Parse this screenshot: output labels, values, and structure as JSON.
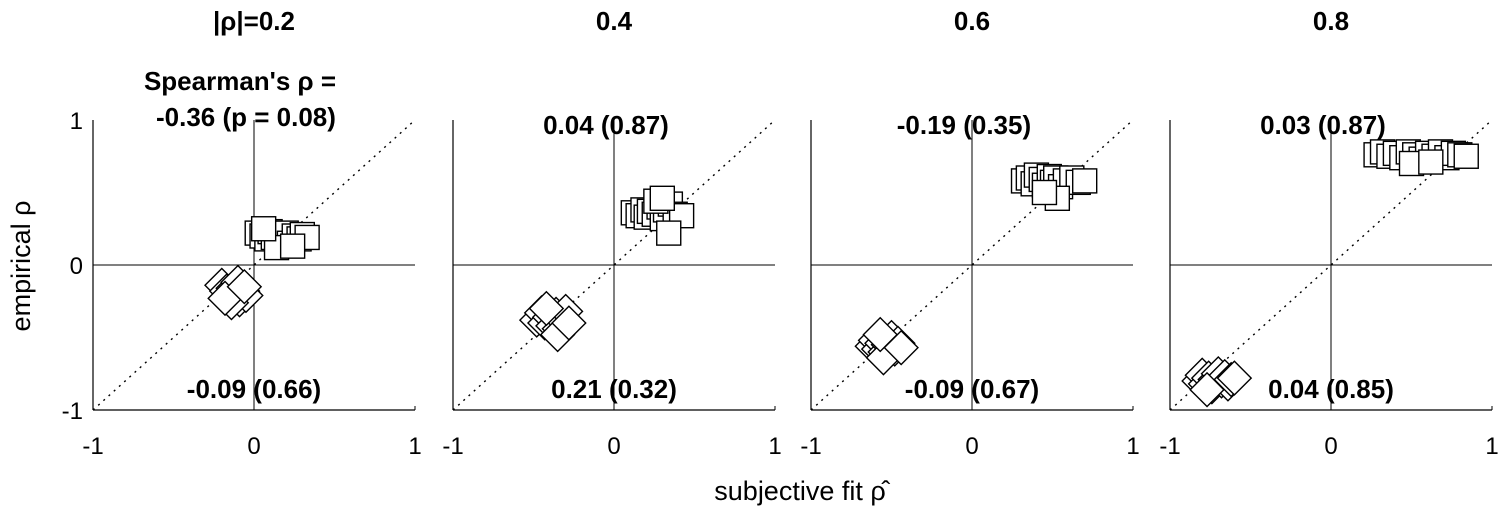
{
  "figure": {
    "xlabel": "subjective fit ρ̂",
    "ylabel": "empirical ρ",
    "spearman_header": "Spearman's ρ =",
    "x_ticks": [
      "-1",
      "0",
      "1"
    ],
    "y_ticks": [
      "1",
      "0",
      "-1"
    ]
  },
  "chart_data": [
    {
      "type": "scatter",
      "title": "|ρ|=0.2",
      "xlim": [
        -1,
        1
      ],
      "ylim": [
        -1,
        1
      ],
      "reference_line": "identity (dotted)",
      "annotations": {
        "top": "-0.36 (p = 0.08)",
        "bottom": "-0.09 (0.66)"
      },
      "series": [
        {
          "marker": "square",
          "points": [
            [
              0.02,
              0.22
            ],
            [
              0.05,
              0.2
            ],
            [
              0.08,
              0.18
            ],
            [
              0.1,
              0.23
            ],
            [
              0.12,
              0.19
            ],
            [
              0.15,
              0.21
            ],
            [
              0.18,
              0.17
            ],
            [
              0.2,
              0.22
            ],
            [
              0.22,
              0.15
            ],
            [
              0.25,
              0.2
            ],
            [
              0.28,
              0.18
            ],
            [
              0.3,
              0.21
            ],
            [
              0.33,
              0.19
            ],
            [
              0.14,
              0.12
            ],
            [
              0.24,
              0.13
            ],
            [
              0.06,
              0.25
            ]
          ]
        },
        {
          "marker": "diamond",
          "points": [
            [
              -0.2,
              -0.14
            ],
            [
              -0.17,
              -0.18
            ],
            [
              -0.15,
              -0.22
            ],
            [
              -0.13,
              -0.16
            ],
            [
              -0.11,
              -0.2
            ],
            [
              -0.09,
              -0.24
            ],
            [
              -0.07,
              -0.18
            ],
            [
              -0.05,
              -0.21
            ],
            [
              -0.14,
              -0.26
            ],
            [
              -0.1,
              -0.12
            ],
            [
              -0.18,
              -0.23
            ],
            [
              -0.06,
              -0.15
            ]
          ]
        }
      ]
    },
    {
      "type": "scatter",
      "title": "0.4",
      "xlim": [
        -1,
        1
      ],
      "ylim": [
        -1,
        1
      ],
      "reference_line": "identity (dotted)",
      "annotations": {
        "top": "0.04 (0.87)",
        "bottom": "0.21 (0.32)"
      },
      "series": [
        {
          "marker": "square",
          "points": [
            [
              0.12,
              0.36
            ],
            [
              0.15,
              0.34
            ],
            [
              0.18,
              0.38
            ],
            [
              0.2,
              0.33
            ],
            [
              0.22,
              0.37
            ],
            [
              0.25,
              0.35
            ],
            [
              0.28,
              0.4
            ],
            [
              0.3,
              0.32
            ],
            [
              0.32,
              0.38
            ],
            [
              0.35,
              0.42
            ],
            [
              0.38,
              0.35
            ],
            [
              0.42,
              0.34
            ],
            [
              0.26,
              0.44
            ],
            [
              0.34,
              0.22
            ],
            [
              0.3,
              0.46
            ]
          ]
        },
        {
          "marker": "diamond",
          "points": [
            [
              -0.48,
              -0.38
            ],
            [
              -0.45,
              -0.33
            ],
            [
              -0.43,
              -0.4
            ],
            [
              -0.4,
              -0.36
            ],
            [
              -0.38,
              -0.42
            ],
            [
              -0.36,
              -0.34
            ],
            [
              -0.34,
              -0.44
            ],
            [
              -0.32,
              -0.38
            ],
            [
              -0.3,
              -0.32
            ],
            [
              -0.35,
              -0.48
            ],
            [
              -0.42,
              -0.3
            ],
            [
              -0.28,
              -0.4
            ]
          ]
        }
      ]
    },
    {
      "type": "scatter",
      "title": "0.6",
      "xlim": [
        -1,
        1
      ],
      "ylim": [
        -1,
        1
      ],
      "reference_line": "identity (dotted)",
      "annotations": {
        "top": "-0.19 (0.35)",
        "bottom": "-0.09 (0.67)"
      },
      "series": [
        {
          "marker": "square",
          "points": [
            [
              0.32,
              0.58
            ],
            [
              0.35,
              0.6
            ],
            [
              0.38,
              0.56
            ],
            [
              0.4,
              0.62
            ],
            [
              0.43,
              0.59
            ],
            [
              0.45,
              0.55
            ],
            [
              0.48,
              0.61
            ],
            [
              0.5,
              0.57
            ],
            [
              0.52,
              0.6
            ],
            [
              0.55,
              0.54
            ],
            [
              0.58,
              0.58
            ],
            [
              0.62,
              0.6
            ],
            [
              0.66,
              0.57
            ],
            [
              0.7,
              0.58
            ],
            [
              0.53,
              0.46
            ],
            [
              0.45,
              0.5
            ]
          ]
        },
        {
          "marker": "diamond",
          "points": [
            [
              -0.62,
              -0.56
            ],
            [
              -0.6,
              -0.52
            ],
            [
              -0.58,
              -0.58
            ],
            [
              -0.56,
              -0.54
            ],
            [
              -0.54,
              -0.6
            ],
            [
              -0.52,
              -0.55
            ],
            [
              -0.5,
              -0.5
            ],
            [
              -0.48,
              -0.58
            ],
            [
              -0.46,
              -0.54
            ],
            [
              -0.55,
              -0.64
            ],
            [
              -0.44,
              -0.57
            ],
            [
              -0.57,
              -0.48
            ]
          ]
        }
      ]
    },
    {
      "type": "scatter",
      "title": "0.8",
      "xlim": [
        -1,
        1
      ],
      "ylim": [
        -1,
        1
      ],
      "reference_line": "identity (dotted)",
      "annotations": {
        "top": "0.03 (0.87)",
        "bottom": "0.04 (0.85)"
      },
      "series": [
        {
          "marker": "square",
          "points": [
            [
              0.28,
              0.76
            ],
            [
              0.32,
              0.78
            ],
            [
              0.36,
              0.75
            ],
            [
              0.4,
              0.77
            ],
            [
              0.44,
              0.74
            ],
            [
              0.48,
              0.78
            ],
            [
              0.52,
              0.76
            ],
            [
              0.56,
              0.73
            ],
            [
              0.6,
              0.77
            ],
            [
              0.64,
              0.75
            ],
            [
              0.68,
              0.78
            ],
            [
              0.72,
              0.74
            ],
            [
              0.76,
              0.77
            ],
            [
              0.8,
              0.76
            ],
            [
              0.84,
              0.75
            ],
            [
              0.5,
              0.7
            ],
            [
              0.62,
              0.71
            ]
          ]
        },
        {
          "marker": "diamond",
          "points": [
            [
              -0.82,
              -0.8
            ],
            [
              -0.8,
              -0.76
            ],
            [
              -0.78,
              -0.82
            ],
            [
              -0.76,
              -0.78
            ],
            [
              -0.74,
              -0.84
            ],
            [
              -0.72,
              -0.79
            ],
            [
              -0.7,
              -0.75
            ],
            [
              -0.68,
              -0.8
            ],
            [
              -0.66,
              -0.77
            ],
            [
              -0.64,
              -0.82
            ],
            [
              -0.62,
              -0.79
            ],
            [
              -0.6,
              -0.78
            ],
            [
              -0.77,
              -0.86
            ]
          ]
        }
      ]
    }
  ]
}
